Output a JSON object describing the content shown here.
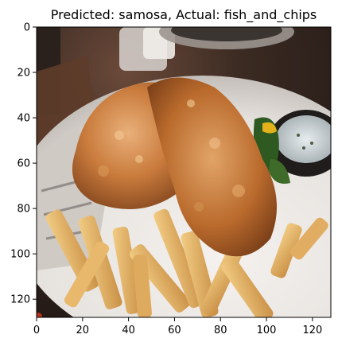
{
  "figure": {
    "title": "Predicted: samosa, Actual: fish_and_chips",
    "image_description_icon": "photo-fish-and-chips",
    "x_ticks": [
      "0",
      "20",
      "40",
      "60",
      "80",
      "100",
      "120"
    ],
    "y_ticks": [
      "0",
      "20",
      "40",
      "60",
      "80",
      "100",
      "120"
    ],
    "x_tick_values": [
      0,
      20,
      40,
      60,
      80,
      100,
      120
    ],
    "y_tick_values": [
      0,
      20,
      40,
      60,
      80,
      100,
      120
    ],
    "pixel_extent": 128
  }
}
